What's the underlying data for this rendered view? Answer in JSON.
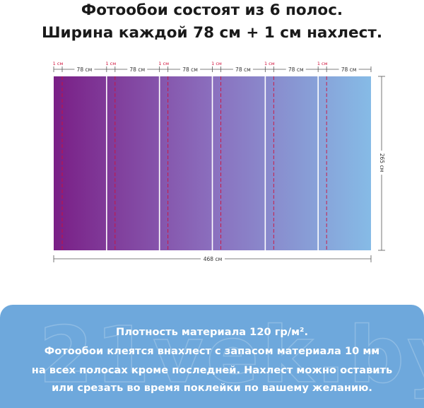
{
  "header": {
    "line1": "Фотообои состоят из 6 полос.",
    "line2": "Ширина каждой 78 см + 1 см нахлест."
  },
  "diagram": {
    "strip_count": 6,
    "overlap_label": "1 см",
    "strip_label": "78 см",
    "height_label": "265 см",
    "total_width_label": "468 см",
    "gradient_start": "#7a1f86",
    "gradient_mid": "#8b6fbe",
    "gradient_end": "#86bbe6",
    "overlap_color": "#d0103a"
  },
  "info": {
    "line1": "Плотность материала 120 гр/м².",
    "line2": "Фотообои клеятся внахлест с запасом материала 10 мм",
    "line3": "на всех полосах кроме последней. Нахлест можно оставить",
    "line4": "или срезать во время поклейки по вашему желанию.",
    "watermark": "21vek.by",
    "box_color": "#6ea8dc"
  }
}
